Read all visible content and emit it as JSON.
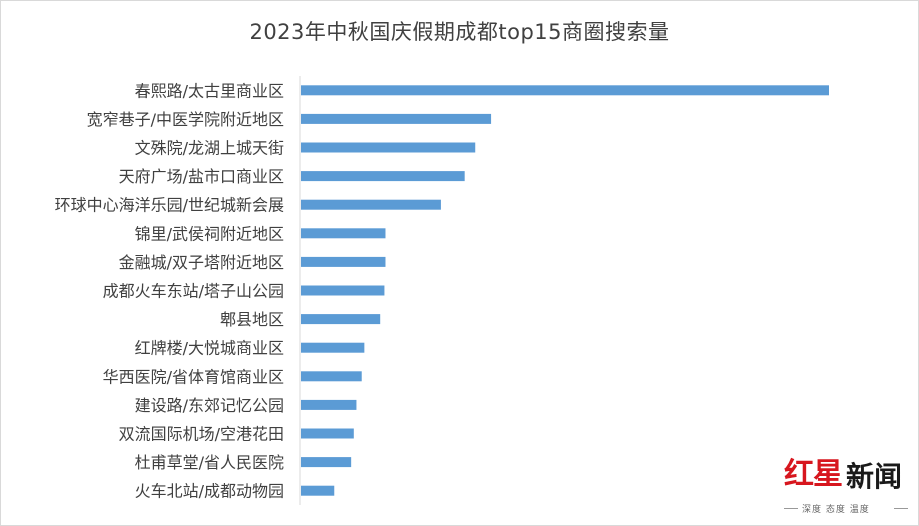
{
  "chart_data": {
    "type": "bar",
    "orientation": "horizontal",
    "title": "2023年中秋国庆假期成都top15商圈搜索量",
    "xlabel": "",
    "ylabel": "",
    "categories": [
      "春熙路/太古里商业区",
      "宽窄巷子/中医学院附近地区",
      "文殊院/龙湖上城天街",
      "天府广场/盐市口商业区",
      "环球中心海洋乐园/世纪城新会展",
      "锦里/武侯祠附近地区",
      "金融城/双子塔附近地区",
      "成都火车东站/塔子山公园",
      "郫县地区",
      "红牌楼/大悦城商业区",
      "华西医院/省体育馆商业区",
      "建设路/东郊记忆公园",
      "双流国际机场/空港花田",
      "杜甫草堂/省人民医院",
      "火车北站/成都动物园"
    ],
    "values": [
      100,
      36,
      33,
      31,
      26.5,
      16,
      16,
      15.8,
      15,
      12,
      11.5,
      10.5,
      10,
      9.5,
      6.3
    ],
    "value_axis_shown": false,
    "grid": false,
    "legend": "none",
    "bar_color": "#5b9bd5"
  },
  "watermark": {
    "brand_red": "红星",
    "brand_black": "新闻",
    "tagline": "深度 态度 温度"
  }
}
